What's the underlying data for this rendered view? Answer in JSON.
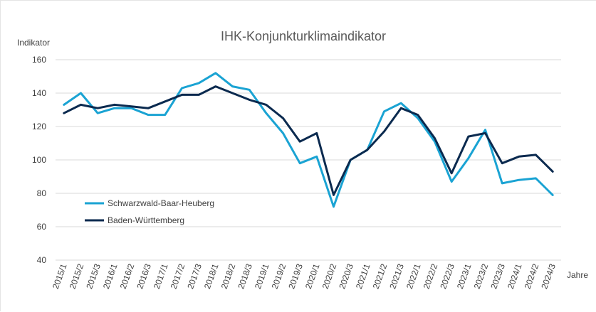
{
  "chart_data": {
    "type": "line",
    "title": "IHK-Konjunkturklimaindikator",
    "ylabel": "Indikator",
    "xlabel": "Jahre",
    "ylim": [
      40,
      160
    ],
    "yticks": [
      40,
      60,
      80,
      100,
      120,
      140,
      160
    ],
    "grid": true,
    "legend_position": "bottom-left",
    "categories": [
      "2015/1",
      "2015/2",
      "2015/3",
      "2016/1",
      "2016/2",
      "2016/3",
      "2017/1",
      "2017/2",
      "2017/3",
      "2018/1",
      "2018/2",
      "2018/3",
      "2019/1",
      "2019/2",
      "2019/3",
      "2020/1",
      "2020/2",
      "2020/3",
      "2021/1",
      "2021/2",
      "2021/3",
      "2022/1",
      "2022/2",
      "2022/3",
      "2023/1",
      "2023/2",
      "2023/3",
      "2024/1",
      "2024/2",
      "2024/3"
    ],
    "series": [
      {
        "name": "Schwarzwald-Baar-Heuberg",
        "color": "#1aa3d3",
        "values": [
          133,
          140,
          128,
          131,
          131,
          127,
          127,
          143,
          146,
          152,
          144,
          142,
          128,
          116,
          98,
          102,
          72,
          100,
          106,
          129,
          134,
          125,
          111,
          87,
          101,
          118,
          86,
          88,
          89,
          79
        ]
      },
      {
        "name": "Baden-Württemberg",
        "color": "#0b2a4f",
        "values": [
          128,
          133,
          131,
          133,
          132,
          131,
          135,
          139,
          139,
          144,
          140,
          136,
          133,
          125,
          111,
          116,
          79,
          100,
          106,
          117,
          131,
          127,
          113,
          92,
          114,
          116,
          98,
          102,
          103,
          93
        ]
      }
    ]
  }
}
